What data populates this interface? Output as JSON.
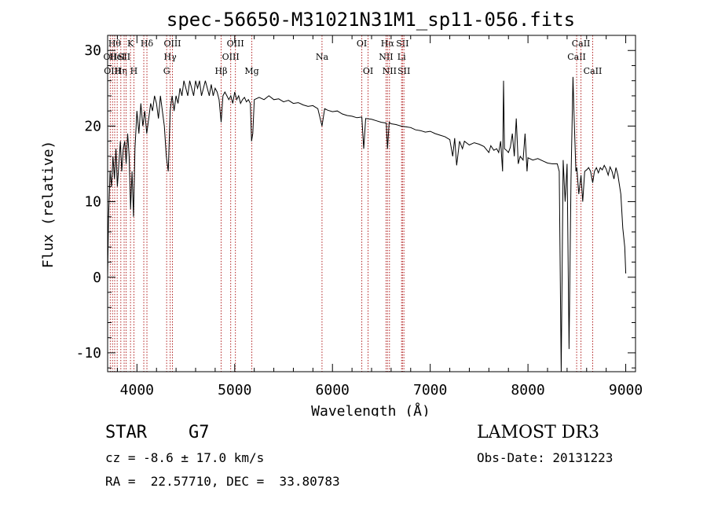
{
  "info": {
    "object_class": "STAR    G7",
    "survey": "LAMOST DR3",
    "cz": "cz = -8.6 ± 17.0 km/s",
    "obs_date": "Obs-Date: 20131223",
    "radec": "RA =  22.57710, DEC =  33.80783"
  },
  "chart_data": {
    "type": "line",
    "title": "spec-56650-M31021N31M1_sp11-056.fits",
    "xlabel": "Wavelength (Å)",
    "ylabel": "Flux (relative)",
    "xlim": [
      3700,
      9100
    ],
    "ylim": [
      -12.5,
      32
    ],
    "xticks": [
      4000,
      5000,
      6000,
      7000,
      8000,
      9000
    ],
    "yticks": [
      -10,
      0,
      10,
      20,
      30
    ],
    "line_color": "#000000",
    "marker_color": "#b22222",
    "spectrum": [
      [
        3700,
        0
      ],
      [
        3710,
        8
      ],
      [
        3725,
        14
      ],
      [
        3740,
        12
      ],
      [
        3755,
        16
      ],
      [
        3770,
        13
      ],
      [
        3785,
        17
      ],
      [
        3800,
        12
      ],
      [
        3815,
        15
      ],
      [
        3830,
        18
      ],
      [
        3845,
        14
      ],
      [
        3860,
        17
      ],
      [
        3875,
        18
      ],
      [
        3890,
        15
      ],
      [
        3905,
        19
      ],
      [
        3920,
        16
      ],
      [
        3935,
        9
      ],
      [
        3950,
        14
      ],
      [
        3965,
        8
      ],
      [
        3980,
        17
      ],
      [
        4000,
        22
      ],
      [
        4020,
        19
      ],
      [
        4040,
        23
      ],
      [
        4060,
        20
      ],
      [
        4080,
        22
      ],
      [
        4100,
        19
      ],
      [
        4120,
        21
      ],
      [
        4140,
        23
      ],
      [
        4160,
        22
      ],
      [
        4180,
        24
      ],
      [
        4200,
        23
      ],
      [
        4220,
        21
      ],
      [
        4240,
        24
      ],
      [
        4260,
        22
      ],
      [
        4280,
        20
      ],
      [
        4300,
        16
      ],
      [
        4320,
        14
      ],
      [
        4340,
        22
      ],
      [
        4360,
        24
      ],
      [
        4380,
        22
      ],
      [
        4400,
        24
      ],
      [
        4420,
        23
      ],
      [
        4440,
        25
      ],
      [
        4460,
        24
      ],
      [
        4480,
        26
      ],
      [
        4500,
        25
      ],
      [
        4520,
        24
      ],
      [
        4540,
        26
      ],
      [
        4560,
        25
      ],
      [
        4580,
        24
      ],
      [
        4600,
        26
      ],
      [
        4620,
        25
      ],
      [
        4640,
        26
      ],
      [
        4660,
        24
      ],
      [
        4680,
        25
      ],
      [
        4700,
        26
      ],
      [
        4720,
        25
      ],
      [
        4740,
        24
      ],
      [
        4760,
        25.5
      ],
      [
        4780,
        24
      ],
      [
        4800,
        25
      ],
      [
        4820,
        24.5
      ],
      [
        4840,
        23.5
      ],
      [
        4861,
        20.5
      ],
      [
        4880,
        24
      ],
      [
        4900,
        24.5
      ],
      [
        4920,
        24
      ],
      [
        4940,
        23.5
      ],
      [
        4960,
        24
      ],
      [
        4980,
        23
      ],
      [
        5000,
        24.5
      ],
      [
        5020,
        23.5
      ],
      [
        5040,
        24
      ],
      [
        5060,
        23
      ],
      [
        5080,
        23.5
      ],
      [
        5100,
        23.8
      ],
      [
        5120,
        23.2
      ],
      [
        5140,
        23.5
      ],
      [
        5160,
        23
      ],
      [
        5172,
        18
      ],
      [
        5185,
        19
      ],
      [
        5200,
        23.5
      ],
      [
        5250,
        23.8
      ],
      [
        5300,
        23.5
      ],
      [
        5350,
        24
      ],
      [
        5400,
        23.5
      ],
      [
        5450,
        23.6
      ],
      [
        5500,
        23.2
      ],
      [
        5550,
        23.4
      ],
      [
        5600,
        23
      ],
      [
        5650,
        23.1
      ],
      [
        5700,
        22.8
      ],
      [
        5750,
        22.6
      ],
      [
        5800,
        22.7
      ],
      [
        5850,
        22.3
      ],
      [
        5893,
        20
      ],
      [
        5920,
        22.3
      ],
      [
        5950,
        22.1
      ],
      [
        6000,
        21.9
      ],
      [
        6050,
        22
      ],
      [
        6100,
        21.6
      ],
      [
        6150,
        21.4
      ],
      [
        6200,
        21.3
      ],
      [
        6250,
        21.1
      ],
      [
        6300,
        21.2
      ],
      [
        6320,
        17
      ],
      [
        6340,
        21
      ],
      [
        6400,
        20.9
      ],
      [
        6450,
        20.7
      ],
      [
        6500,
        20.5
      ],
      [
        6550,
        20.4
      ],
      [
        6563,
        17
      ],
      [
        6580,
        20.5
      ],
      [
        6600,
        20.3
      ],
      [
        6650,
        20.2
      ],
      [
        6700,
        20
      ],
      [
        6750,
        19.9
      ],
      [
        6800,
        19.8
      ],
      [
        6850,
        19.5
      ],
      [
        6900,
        19.4
      ],
      [
        6950,
        19.2
      ],
      [
        7000,
        19.3
      ],
      [
        7050,
        19
      ],
      [
        7100,
        18.8
      ],
      [
        7150,
        18.6
      ],
      [
        7200,
        18.2
      ],
      [
        7230,
        16
      ],
      [
        7250,
        18.4
      ],
      [
        7270,
        14.8
      ],
      [
        7300,
        18
      ],
      [
        7330,
        17
      ],
      [
        7350,
        18
      ],
      [
        7400,
        17.5
      ],
      [
        7450,
        17.8
      ],
      [
        7500,
        17.6
      ],
      [
        7550,
        17.3
      ],
      [
        7600,
        16.5
      ],
      [
        7620,
        17.4
      ],
      [
        7650,
        16.8
      ],
      [
        7680,
        17
      ],
      [
        7700,
        16.5
      ],
      [
        7720,
        18
      ],
      [
        7740,
        14
      ],
      [
        7750,
        26
      ],
      [
        7760,
        17
      ],
      [
        7780,
        16.8
      ],
      [
        7800,
        16.5
      ],
      [
        7820,
        17.2
      ],
      [
        7840,
        19
      ],
      [
        7860,
        16
      ],
      [
        7880,
        21
      ],
      [
        7900,
        15
      ],
      [
        7920,
        16
      ],
      [
        7950,
        15.5
      ],
      [
        7970,
        19
      ],
      [
        7990,
        14
      ],
      [
        8000,
        15.8
      ],
      [
        8050,
        15.5
      ],
      [
        8100,
        15.7
      ],
      [
        8150,
        15.4
      ],
      [
        8200,
        15.1
      ],
      [
        8250,
        15
      ],
      [
        8300,
        15
      ],
      [
        8320,
        14
      ],
      [
        8340,
        -12.5
      ],
      [
        8360,
        15.5
      ],
      [
        8380,
        10
      ],
      [
        8400,
        15
      ],
      [
        8420,
        -9.5
      ],
      [
        8440,
        13
      ],
      [
        8460,
        26.5
      ],
      [
        8470,
        22
      ],
      [
        8490,
        14
      ],
      [
        8500,
        14.5
      ],
      [
        8520,
        11
      ],
      [
        8542,
        13.5
      ],
      [
        8560,
        10
      ],
      [
        8580,
        14
      ],
      [
        8600,
        14.2
      ],
      [
        8620,
        14.5
      ],
      [
        8640,
        14
      ],
      [
        8662,
        12.5
      ],
      [
        8680,
        14
      ],
      [
        8700,
        14.5
      ],
      [
        8720,
        13.8
      ],
      [
        8740,
        14.5
      ],
      [
        8760,
        14.2
      ],
      [
        8780,
        14.8
      ],
      [
        8800,
        14.3
      ],
      [
        8820,
        13.5
      ],
      [
        8840,
        14.6
      ],
      [
        8860,
        14
      ],
      [
        8880,
        13
      ],
      [
        8900,
        14.5
      ],
      [
        8920,
        13.5
      ],
      [
        8950,
        11
      ],
      [
        8970,
        6.5
      ],
      [
        8990,
        4
      ],
      [
        9000,
        0.5
      ]
    ],
    "lines": [
      {
        "wave": 3727,
        "label": "OII",
        "row": 1
      },
      {
        "wave": 3750,
        "label": "OIII",
        "row": 2
      },
      {
        "wave": 3772,
        "label": "Hθ",
        "row": 0
      },
      {
        "wave": 3798,
        "label": "HeI",
        "row": 1
      },
      {
        "wave": 3835,
        "label": "Hη",
        "row": 2
      },
      {
        "wave": 3869,
        "label": "SII",
        "row": 1
      },
      {
        "wave": 3889,
        "label": "",
        "row": 0
      },
      {
        "wave": 3934,
        "label": "K",
        "row": 0
      },
      {
        "wave": 3969,
        "label": "H",
        "row": 2
      },
      {
        "wave": 4070,
        "label": "",
        "row": 1
      },
      {
        "wave": 4102,
        "label": "Hδ",
        "row": 0
      },
      {
        "wave": 4304,
        "label": "G",
        "row": 2
      },
      {
        "wave": 4340,
        "label": "Hγ",
        "row": 1
      },
      {
        "wave": 4363,
        "label": "OIII",
        "row": 0
      },
      {
        "wave": 4861,
        "label": "Hβ",
        "row": 2
      },
      {
        "wave": 4959,
        "label": "OIII",
        "row": 1
      },
      {
        "wave": 5007,
        "label": "OIII",
        "row": 0
      },
      {
        "wave": 5175,
        "label": "Mg",
        "row": 2
      },
      {
        "wave": 5893,
        "label": "Na",
        "row": 1
      },
      {
        "wave": 6300,
        "label": "OI",
        "row": 0
      },
      {
        "wave": 6364,
        "label": "OI",
        "row": 2
      },
      {
        "wave": 6548,
        "label": "NII",
        "row": 1
      },
      {
        "wave": 6563,
        "label": "Hα",
        "row": 0
      },
      {
        "wave": 6583,
        "label": "NII",
        "row": 2
      },
      {
        "wave": 6716,
        "label": "SII",
        "row": 0
      },
      {
        "wave": 6731,
        "label": "SII",
        "row": 2
      },
      {
        "wave": 6707,
        "label": "Li",
        "row": 1
      },
      {
        "wave": 8498,
        "label": "CaII",
        "row": 1
      },
      {
        "wave": 8542,
        "label": "CaII",
        "row": 0
      },
      {
        "wave": 8662,
        "label": "CaII",
        "row": 2
      }
    ]
  }
}
